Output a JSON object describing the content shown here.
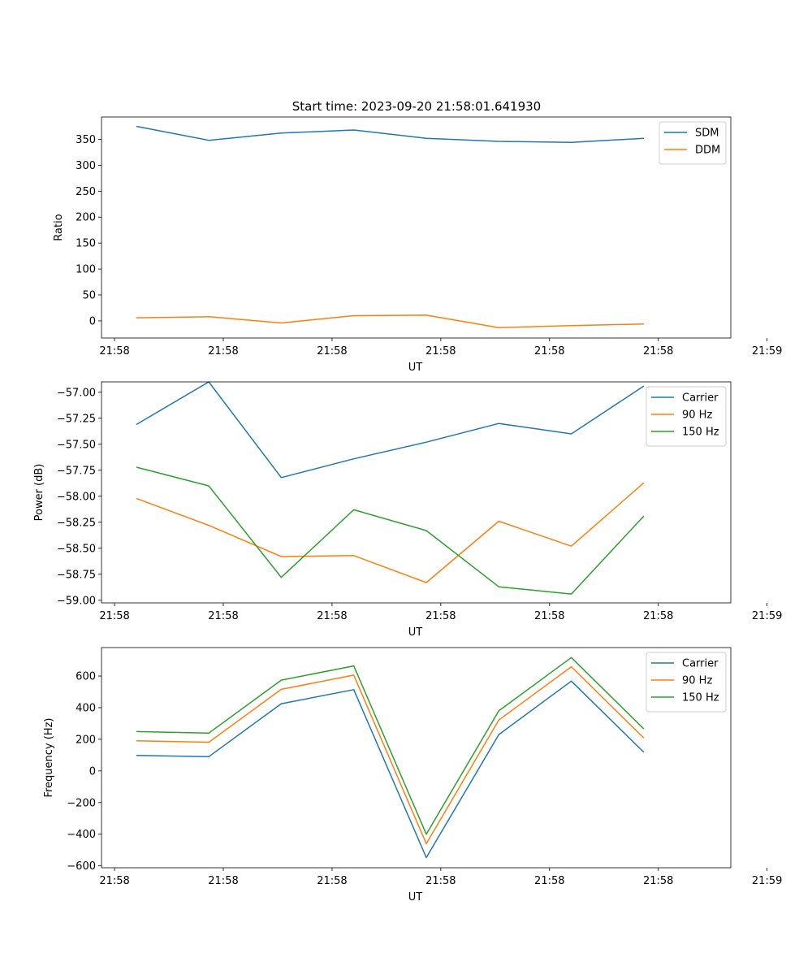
{
  "figure_title": "Start time: 2023-09-20 21:58:01.641930",
  "colors": {
    "blue": "#1f77b4",
    "orange": "#ff7f0e",
    "green": "#2ca02c",
    "axis": "#000000"
  },
  "chart_data": [
    {
      "type": "line",
      "title": "Start time: 2023-09-20 21:58:01.641930",
      "xlabel": "UT",
      "ylabel": "Ratio",
      "x": [
        1,
        2,
        3,
        4,
        5,
        6,
        7,
        8
      ],
      "xlim": [
        0.52,
        9.2
      ],
      "x_ticks": [
        0.7,
        2.2,
        3.7,
        5.2,
        6.7,
        8.2,
        9.7
      ],
      "x_tick_labels": [
        "21:58",
        "21:58",
        "21:58",
        "21:58",
        "21:58",
        "21:58",
        "21:59"
      ],
      "ylim": [
        -33,
        393
      ],
      "y_ticks": [
        0,
        50,
        100,
        150,
        200,
        250,
        300,
        350
      ],
      "y_tick_labels": [
        "0",
        "50",
        "100",
        "150",
        "200",
        "250",
        "300",
        "350"
      ],
      "legend_position": "top-right",
      "series": [
        {
          "name": "SDM",
          "color": "#1f77b4",
          "values": [
            375,
            348,
            362,
            368,
            352,
            346,
            344,
            352
          ]
        },
        {
          "name": "DDM",
          "color": "#ff7f0e",
          "values": [
            6,
            8,
            -4,
            10,
            11,
            -13,
            -9,
            -6
          ]
        }
      ]
    },
    {
      "type": "line",
      "title": "",
      "xlabel": "UT",
      "ylabel": "Power (dB)",
      "x": [
        1,
        2,
        3,
        4,
        5,
        6,
        7,
        8
      ],
      "xlim": [
        0.52,
        9.2
      ],
      "x_ticks": [
        0.7,
        2.2,
        3.7,
        5.2,
        6.7,
        8.2,
        9.7
      ],
      "x_tick_labels": [
        "21:58",
        "21:58",
        "21:58",
        "21:58",
        "21:58",
        "21:58",
        "21:59"
      ],
      "ylim": [
        -59.025,
        -56.9
      ],
      "y_ticks": [
        -59.0,
        -58.75,
        -58.5,
        -58.25,
        -58.0,
        -57.75,
        -57.5,
        -57.25,
        -57.0
      ],
      "y_tick_labels": [
        "−59.00",
        "−58.75",
        "−58.50",
        "−58.25",
        "−58.00",
        "−57.75",
        "−57.50",
        "−57.25",
        "−57.00"
      ],
      "legend_position": "top-right",
      "series": [
        {
          "name": "Carrier",
          "color": "#1f77b4",
          "values": [
            -57.31,
            -56.9,
            -57.82,
            -57.64,
            -57.48,
            -57.3,
            -57.4,
            -56.94
          ]
        },
        {
          "name": "90 Hz",
          "color": "#ff7f0e",
          "values": [
            -58.02,
            -58.28,
            -58.58,
            -58.57,
            -58.83,
            -58.24,
            -58.48,
            -57.87
          ]
        },
        {
          "name": "150 Hz",
          "color": "#2ca02c",
          "values": [
            -57.72,
            -57.9,
            -58.78,
            -58.13,
            -58.33,
            -58.87,
            -58.94,
            -58.19
          ]
        }
      ]
    },
    {
      "type": "line",
      "title": "",
      "xlabel": "UT",
      "ylabel": "Frequency (Hz)",
      "x": [
        1,
        2,
        3,
        4,
        5,
        6,
        7,
        8
      ],
      "xlim": [
        0.52,
        9.2
      ],
      "x_ticks": [
        0.7,
        2.2,
        3.7,
        5.2,
        6.7,
        8.2,
        9.7
      ],
      "x_tick_labels": [
        "21:58",
        "21:58",
        "21:58",
        "21:58",
        "21:58",
        "21:58",
        "21:59"
      ],
      "ylim": [
        -612,
        780
      ],
      "y_ticks": [
        -600,
        -400,
        -200,
        0,
        200,
        400,
        600
      ],
      "y_tick_labels": [
        "−600",
        "−400",
        "−200",
        "0",
        "200",
        "400",
        "600"
      ],
      "legend_position": "top-right",
      "series": [
        {
          "name": "Carrier",
          "color": "#1f77b4",
          "values": [
            98,
            90,
            425,
            514,
            -548,
            230,
            568,
            118
          ]
        },
        {
          "name": "90 Hz",
          "color": "#ff7f0e",
          "values": [
            191,
            181,
            516,
            606,
            -460,
            322,
            659,
            208
          ]
        },
        {
          "name": "150 Hz",
          "color": "#2ca02c",
          "values": [
            249,
            239,
            574,
            664,
            -400,
            380,
            717,
            266
          ]
        }
      ]
    }
  ]
}
